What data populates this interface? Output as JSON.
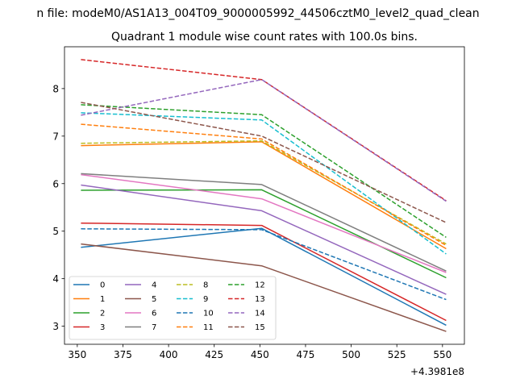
{
  "chart_data": {
    "type": "line",
    "suptitle": "n file: modeM0/AS1A13_004T09_9000005992_44506cztM0_level2_quad_clean",
    "title": "Quadrant 1 module wise count rates with 100.0s bins.",
    "xlabel": "",
    "ylabel": "",
    "offset_text": "+4.3981e8",
    "x": [
      352,
      451,
      552
    ],
    "xlim": [
      343,
      562
    ],
    "ylim": [
      2.62,
      8.88
    ],
    "xticks": [
      350,
      375,
      400,
      425,
      450,
      475,
      500,
      525,
      550
    ],
    "yticks": [
      3,
      4,
      5,
      6,
      7,
      8
    ],
    "grid": false,
    "legend_position": "lower-left",
    "legend_columns": 4,
    "series": [
      {
        "name": "0",
        "values": [
          4.66,
          5.06,
          3.02
        ],
        "color": "#1f77b4",
        "dash": "solid"
      },
      {
        "name": "1",
        "values": [
          6.8,
          6.88,
          4.63
        ],
        "color": "#ff7f0e",
        "dash": "solid"
      },
      {
        "name": "2",
        "values": [
          5.86,
          5.87,
          4.02
        ],
        "color": "#2ca02c",
        "dash": "solid"
      },
      {
        "name": "3",
        "values": [
          5.17,
          5.12,
          3.12
        ],
        "color": "#d62728",
        "dash": "solid"
      },
      {
        "name": "4",
        "values": [
          5.97,
          5.43,
          3.67
        ],
        "color": "#9467bd",
        "dash": "solid"
      },
      {
        "name": "5",
        "values": [
          4.73,
          4.27,
          2.89
        ],
        "color": "#8c564b",
        "dash": "solid"
      },
      {
        "name": "6",
        "values": [
          6.19,
          5.68,
          4.13
        ],
        "color": "#e377c2",
        "dash": "solid"
      },
      {
        "name": "7",
        "values": [
          6.21,
          5.98,
          4.16
        ],
        "color": "#7f7f7f",
        "dash": "solid"
      },
      {
        "name": "8",
        "values": [
          6.85,
          6.9,
          4.73
        ],
        "color": "#bcbd22",
        "dash": "dashed"
      },
      {
        "name": "9",
        "values": [
          7.49,
          7.34,
          4.52
        ],
        "color": "#17becf",
        "dash": "dashed"
      },
      {
        "name": "10",
        "values": [
          5.05,
          5.03,
          3.56
        ],
        "color": "#1f77b4",
        "dash": "dashed"
      },
      {
        "name": "11",
        "values": [
          7.25,
          6.94,
          4.7
        ],
        "color": "#ff7f0e",
        "dash": "dashed"
      },
      {
        "name": "12",
        "values": [
          7.66,
          7.45,
          4.87
        ],
        "color": "#2ca02c",
        "dash": "dashed"
      },
      {
        "name": "13",
        "values": [
          8.61,
          8.19,
          5.64
        ],
        "color": "#d62728",
        "dash": "dashed"
      },
      {
        "name": "14",
        "values": [
          7.44,
          8.19,
          5.63
        ],
        "color": "#9467bd",
        "dash": "dashed"
      },
      {
        "name": "15",
        "values": [
          7.71,
          7.0,
          5.18
        ],
        "color": "#8c564b",
        "dash": "dashed"
      }
    ]
  }
}
